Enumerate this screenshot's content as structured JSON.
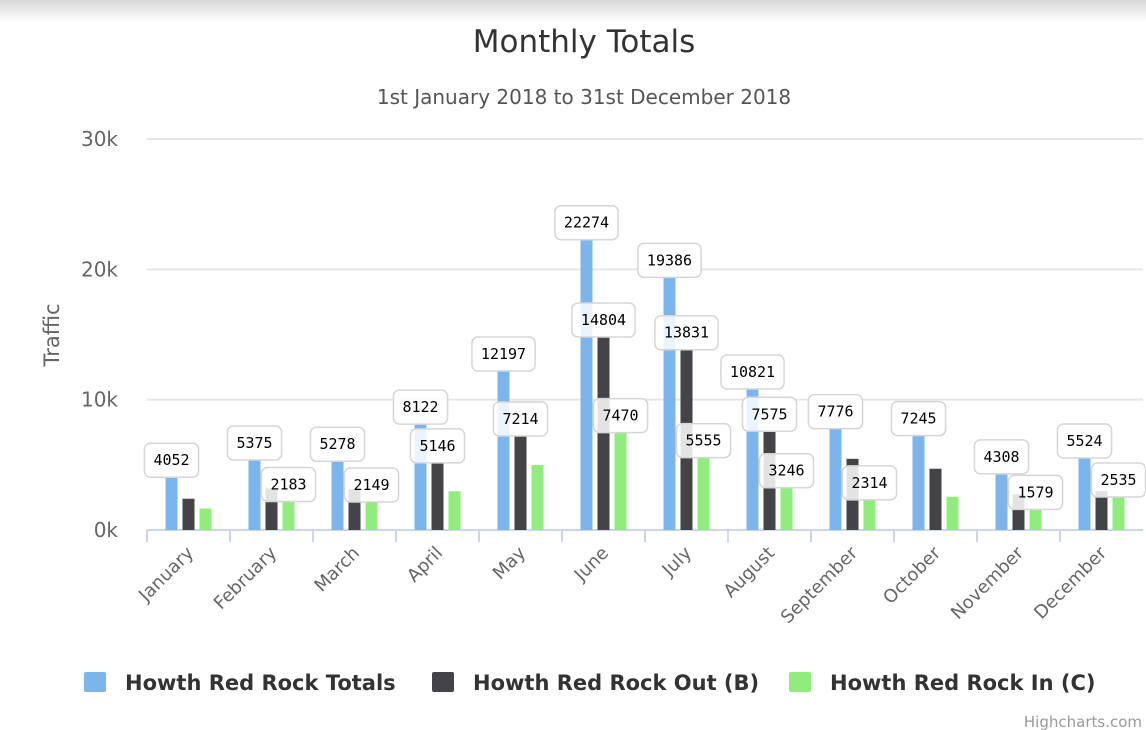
{
  "chart_data": {
    "type": "bar",
    "title": "Monthly Totals",
    "subtitle": "1st January 2018 to 31st December 2018",
    "y_axis_label": "Traffic",
    "categories": [
      "January",
      "February",
      "March",
      "April",
      "May",
      "June",
      "July",
      "August",
      "September",
      "October",
      "November",
      "December"
    ],
    "series": [
      {
        "name": "Howth Red Rock Totals",
        "color": "#7cb5ec",
        "values": [
          4052,
          5375,
          5278,
          8122,
          12197,
          22274,
          19386,
          10821,
          7776,
          7245,
          4308,
          5524
        ],
        "value_labels": [
          "4052",
          "5375",
          "5278",
          "8122",
          "12197",
          "22274",
          "19386",
          "10821",
          "7776",
          "7245",
          "4308",
          "5524"
        ]
      },
      {
        "name": "Howth Red Rock Out (B)",
        "color": "#434348",
        "values": [
          2400,
          3192,
          3129,
          5146,
          7214,
          14804,
          13831,
          7575,
          5462,
          4700,
          2729,
          2989
        ],
        "value_labels": [
          null,
          null,
          null,
          "5146",
          "7214",
          "14804",
          "13831",
          "7575",
          null,
          null,
          null,
          null
        ]
      },
      {
        "name": "Howth Red Rock In (C)",
        "color": "#90ed7d",
        "values": [
          1652,
          2183,
          2149,
          2976,
          4983,
          7470,
          5555,
          3246,
          2314,
          2545,
          1579,
          2535
        ],
        "value_labels": [
          null,
          "2183",
          "2149",
          null,
          null,
          "7470",
          "5555",
          "3246",
          "2314",
          null,
          "1579",
          "2535"
        ]
      }
    ],
    "ylim": [
      0,
      30000
    ],
    "yticks": [
      {
        "value": 0,
        "label": "0k"
      },
      {
        "value": 10000,
        "label": "10k"
      },
      {
        "value": 20000,
        "label": "20k"
      },
      {
        "value": 30000,
        "label": "30k"
      }
    ],
    "grid": true,
    "legend": "bottom",
    "credits": "Highcharts.com"
  }
}
